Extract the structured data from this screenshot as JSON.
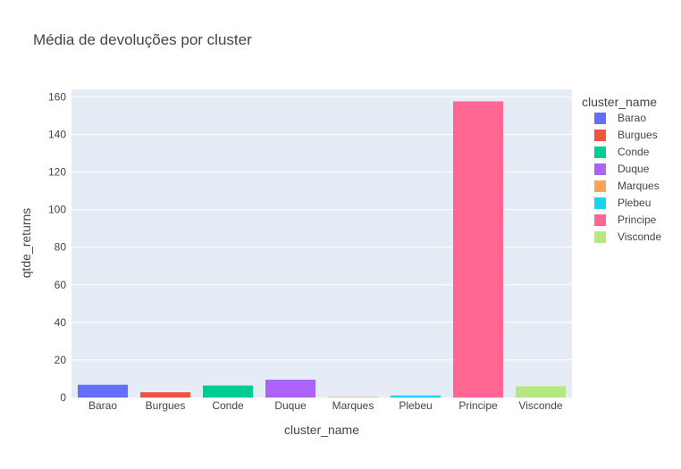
{
  "chart_data": {
    "type": "bar",
    "title": "Média de devoluções por cluster",
    "xlabel": "cluster_name",
    "ylabel": "qtde_returns",
    "categories": [
      "Barao",
      "Burgues",
      "Conde",
      "Duque",
      "Marques",
      "Plebeu",
      "Principe",
      "Visconde"
    ],
    "values": [
      6.8,
      2.8,
      6.4,
      9.5,
      0.3,
      1.1,
      157.6,
      6.0
    ],
    "colors": [
      "#636efa",
      "#EF553B",
      "#00cc96",
      "#ab63fa",
      "#FFA15A",
      "#19d3f3",
      "#FF6692",
      "#B6E880"
    ],
    "ylim": [
      0,
      164
    ],
    "yticks": [
      0,
      20,
      40,
      60,
      80,
      100,
      120,
      140,
      160
    ],
    "grid": true,
    "legend": {
      "title": "cluster_name",
      "placement": "right",
      "entries": [
        "Barao",
        "Burgues",
        "Conde",
        "Duque",
        "Marques",
        "Plebeu",
        "Principe",
        "Visconde"
      ]
    }
  }
}
